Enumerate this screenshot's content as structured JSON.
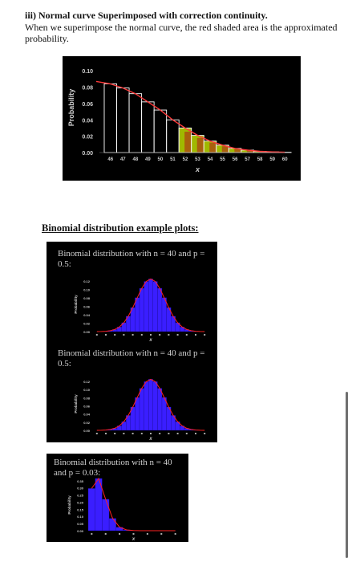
{
  "document": {
    "heading": "iii) Normal curve Superimposed with correction continuity.",
    "paragraph": "When we superimpose the normal curve, the red shaded area is the approximated probability.",
    "section_title": "Binomial distribution example plots:",
    "captions": [
      "Binomial distribution with n = 40 and p = 0.5:",
      "Binomial distribution with n = 40 and p = 0.5:",
      "Binomial distribution with n = 40 and p = 0.03:"
    ]
  },
  "chart_data": [
    {
      "type": "bar",
      "ylabel": "Probability",
      "xlabel": "x",
      "x_ticks": [
        "46",
        "47",
        "48",
        "49",
        "50",
        "51",
        "52",
        "53",
        "54",
        "55",
        "56",
        "57",
        "58",
        "59",
        "60"
      ],
      "y_ticks": [
        "0.00",
        "0.02",
        "0.04",
        "0.06",
        "0.08",
        "0.10"
      ],
      "ylim": [
        0,
        0.11
      ],
      "categories": [
        46,
        47,
        48,
        49,
        50,
        51,
        52,
        53,
        54,
        55,
        56,
        57,
        58,
        59,
        60
      ],
      "values": [
        0.084,
        0.079,
        0.072,
        0.062,
        0.052,
        0.04,
        0.03,
        0.021,
        0.014,
        0.009,
        0.005,
        0.003,
        0.0015,
        0.0008,
        0.0004
      ],
      "shaded_from": 52,
      "colors": {
        "bars": "#ffffff",
        "curve": "#ff3a3a",
        "shade": "#a0b800",
        "shade_red": "#b01818"
      }
    },
    {
      "type": "bar",
      "ylabel": "Probability",
      "xlabel": "x",
      "y_ticks": [
        "0.00",
        "0.02",
        "0.04",
        "0.06",
        "0.08",
        "0.10",
        "0.12"
      ],
      "ylim": [
        0,
        0.13
      ],
      "n": 40,
      "p": 0.5,
      "colors": {
        "bars": "#3a1eff",
        "curve": "#ff2020"
      }
    },
    {
      "type": "bar",
      "ylabel": "Probability",
      "xlabel": "x",
      "y_ticks": [
        "0.00",
        "0.02",
        "0.04",
        "0.06",
        "0.08",
        "0.10",
        "0.12"
      ],
      "ylim": [
        0,
        0.13
      ],
      "n": 40,
      "p": 0.5,
      "colors": {
        "bars": "#3a1eff",
        "curve": "#ff2020"
      }
    },
    {
      "type": "bar",
      "ylabel": "Probability",
      "xlabel": "x",
      "y_ticks": [
        "0.00",
        "0.05",
        "0.10",
        "0.15",
        "0.20",
        "0.25",
        "0.30",
        "0.35"
      ],
      "ylim": [
        0,
        0.36
      ],
      "n": 40,
      "p": 0.03,
      "colors": {
        "bars": "#3a1eff",
        "curve": "#ff2020"
      }
    }
  ]
}
